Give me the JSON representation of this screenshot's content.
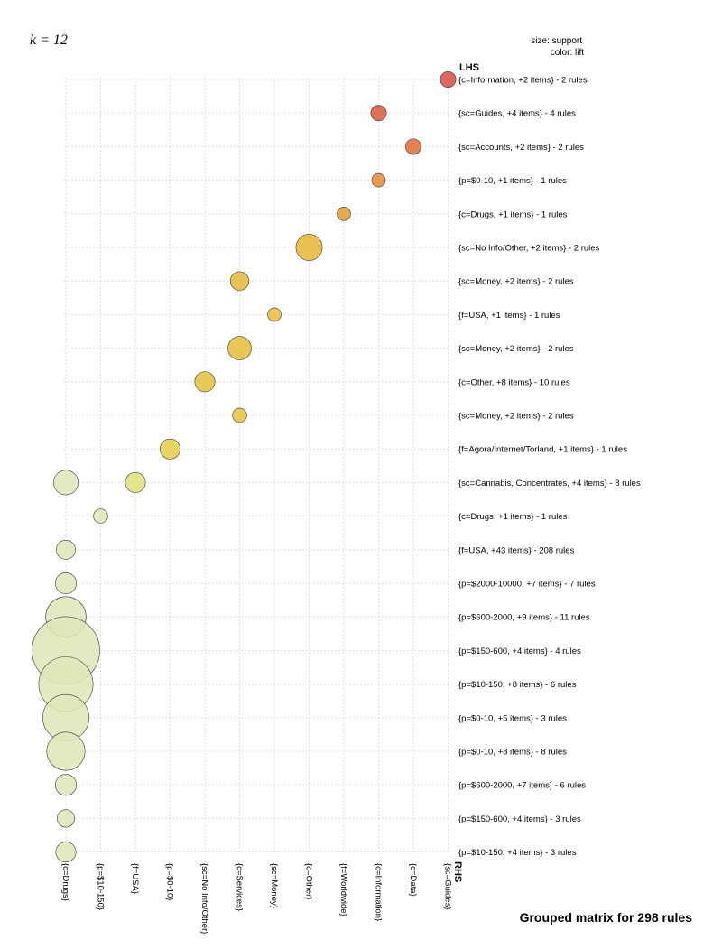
{
  "chart_data": {
    "type": "scatter",
    "subtype": "grouped-matrix-bubble",
    "k_label": "k = 12",
    "legend_notes": [
      "size: support",
      "color: lift"
    ],
    "lhs_title": "LHS",
    "rhs_title": "RHS",
    "title": "Grouped matrix for 298 rules",
    "grid": true,
    "rows": [
      "{c=Information, +2 items} - 2 rules",
      "{sc=Guides, +4 items} - 4 rules",
      "{sc=Accounts, +2 items} - 2 rules",
      "{p=$0-10, +1 items} - 1 rules",
      "{c=Drugs, +1 items} - 1 rules",
      "{sc=No Info/Other, +2 items} - 2 rules",
      "{sc=Money, +2 items} - 2 rules",
      "{f=USA, +1 items} - 1 rules",
      "{sc=Money, +2 items} - 2 rules",
      "{c=Other, +8 items} - 10 rules",
      "{sc=Money, +2 items} - 2 rules",
      "{f=Agora/Internet/Torland, +1 items} - 1 rules",
      "{sc=Cannabis, Concentrates, +4 items} - 8 rules",
      "{c=Drugs, +1 items} - 1 rules",
      "{f=USA, +43 items} - 208 rules",
      "{p=$2000-10000, +7 items} - 7 rules",
      "{p=$600-2000, +9 items} - 11 rules",
      "{p=$150-600, +4 items} - 4 rules",
      "{p=$10-150, +8 items} - 6 rules",
      "{p=$0-10, +5 items} - 3 rules",
      "{p=$0-10, +8 items} - 8 rules",
      "{p=$600-2000, +7 items} - 6 rules",
      "{p=$150-600, +4 items} - 3 rules",
      "{p=$10-150, +4 items} - 3 rules"
    ],
    "columns": [
      "{c=Drugs}",
      "{p=$10-150}",
      "{f=USA}",
      "{p=$0-10}",
      "{sc=No Info/Other}",
      "{c=Services}",
      "{sc=Money}",
      "{c=Other}",
      "{f=Worldwide}",
      "{c=Information}",
      "{c=Data}",
      "{sc=Guides}"
    ],
    "points": [
      {
        "row": 0,
        "col": 11,
        "support": 0.12,
        "color": "#d9534a"
      },
      {
        "row": 1,
        "col": 9,
        "support": 0.12,
        "color": "#dc5f43"
      },
      {
        "row": 2,
        "col": 10,
        "support": 0.12,
        "color": "#e0713f"
      },
      {
        "row": 3,
        "col": 9,
        "support": 0.09,
        "color": "#e48c3a"
      },
      {
        "row": 4,
        "col": 8,
        "support": 0.09,
        "color": "#e49d38"
      },
      {
        "row": 5,
        "col": 7,
        "support": 0.34,
        "color": "#e6b83b"
      },
      {
        "row": 6,
        "col": 5,
        "support": 0.17,
        "color": "#e6ba3c"
      },
      {
        "row": 7,
        "col": 6,
        "support": 0.09,
        "color": "#e6be3e"
      },
      {
        "row": 8,
        "col": 5,
        "support": 0.27,
        "color": "#e6bf3f"
      },
      {
        "row": 9,
        "col": 4,
        "support": 0.2,
        "color": "#e6c240"
      },
      {
        "row": 10,
        "col": 5,
        "support": 0.1,
        "color": "#e6c442"
      },
      {
        "row": 11,
        "col": 3,
        "support": 0.2,
        "color": "#e4d04e"
      },
      {
        "row": 12,
        "col": 2,
        "support": 0.2,
        "color": "#dfe07e"
      },
      {
        "row": 12,
        "col": 0,
        "support": 0.3,
        "color": "#dfe6b8"
      },
      {
        "row": 13,
        "col": 1,
        "support": 0.1,
        "color": "#dfe6b8"
      },
      {
        "row": 14,
        "col": 0,
        "support": 0.18,
        "color": "#dfe6b8"
      },
      {
        "row": 15,
        "col": 0,
        "support": 0.22,
        "color": "#dfe6b8"
      },
      {
        "row": 16,
        "col": 0,
        "support": 0.8,
        "color": "#dfe6b8"
      },
      {
        "row": 17,
        "col": 0,
        "support": 2.25,
        "color": "#dfe6b8"
      },
      {
        "row": 18,
        "col": 0,
        "support": 1.45,
        "color": "#dfe6b8"
      },
      {
        "row": 19,
        "col": 0,
        "support": 1.05,
        "color": "#dfe6b8"
      },
      {
        "row": 20,
        "col": 0,
        "support": 0.72,
        "color": "#dfe6b8"
      },
      {
        "row": 21,
        "col": 0,
        "support": 0.22,
        "color": "#dfe6b8"
      },
      {
        "row": 22,
        "col": 0,
        "support": 0.15,
        "color": "#dfe6b8"
      },
      {
        "row": 23,
        "col": 0,
        "support": 0.2,
        "color": "#dfe6b8"
      }
    ]
  }
}
